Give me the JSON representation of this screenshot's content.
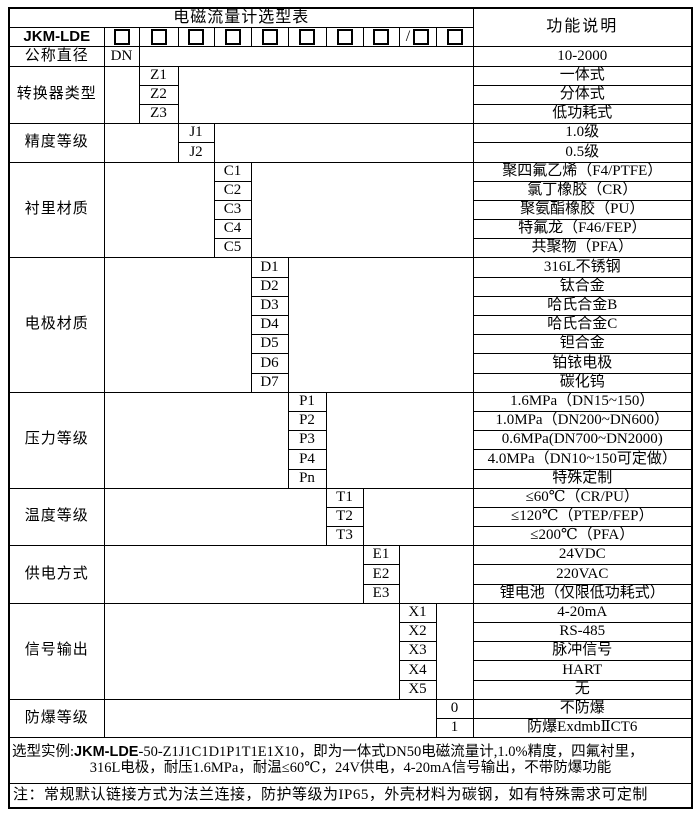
{
  "title": "电磁流量计选型表",
  "right_header": "功能说明",
  "model_row": {
    "brand": "JKM-LDE",
    "slash": "/",
    "checkbox_count": 10
  },
  "sections": [
    {
      "label": "公称直径",
      "col": 1,
      "rows": [
        {
          "code": "DN",
          "desc": "10-2000"
        }
      ]
    },
    {
      "label": "转换器类型",
      "col": 2,
      "rows": [
        {
          "code": "Z1",
          "desc": "一体式"
        },
        {
          "code": "Z2",
          "desc": "分体式"
        },
        {
          "code": "Z3",
          "desc": "低功耗式"
        }
      ]
    },
    {
      "label": "精度等级",
      "col": 3,
      "rows": [
        {
          "code": "J1",
          "desc": "1.0级"
        },
        {
          "code": "J2",
          "desc": "0.5级"
        }
      ]
    },
    {
      "label": "衬里材质",
      "col": 4,
      "rows": [
        {
          "code": "C1",
          "desc": "聚四氟乙烯（F4/PTFE）"
        },
        {
          "code": "C2",
          "desc": "氯丁橡胶（CR）"
        },
        {
          "code": "C3",
          "desc": "聚氨酯橡胶（PU）"
        },
        {
          "code": "C4",
          "desc": "特氟龙（F46/FEP）"
        },
        {
          "code": "C5",
          "desc": "共聚物（PFA）"
        }
      ]
    },
    {
      "label": "电极材质",
      "col": 5,
      "rows": [
        {
          "code": "D1",
          "desc": "316L不锈钢"
        },
        {
          "code": "D2",
          "desc": "钛合金"
        },
        {
          "code": "D3",
          "desc": "哈氏合金B"
        },
        {
          "code": "D4",
          "desc": "哈氏合金C"
        },
        {
          "code": "D5",
          "desc": "钽合金"
        },
        {
          "code": "D6",
          "desc": "铂铱电极"
        },
        {
          "code": "D7",
          "desc": "碳化钨"
        }
      ]
    },
    {
      "label": "压力等级",
      "col": 6,
      "rows": [
        {
          "code": "P1",
          "desc": "1.6MPa（DN15~150）"
        },
        {
          "code": "P2",
          "desc": "1.0MPa（DN200~DN600）"
        },
        {
          "code": "P3",
          "desc": "0.6MPa(DN700~DN2000)"
        },
        {
          "code": "P4",
          "desc": "4.0MPa（DN10~150可定做）"
        },
        {
          "code": "Pn",
          "desc": "特殊定制"
        }
      ]
    },
    {
      "label": "温度等级",
      "col": 7,
      "rows": [
        {
          "code": "T1",
          "desc": "≤60℃（CR/PU）"
        },
        {
          "code": "T2",
          "desc": "≤120℃（PTEP/FEP）"
        },
        {
          "code": "T3",
          "desc": "≤200℃（PFA）"
        }
      ]
    },
    {
      "label": "供电方式",
      "col": 8,
      "rows": [
        {
          "code": "E1",
          "desc": "24VDC"
        },
        {
          "code": "E2",
          "desc": "220VAC"
        },
        {
          "code": "E3",
          "desc": "锂电池（仅限低功耗式）"
        }
      ]
    },
    {
      "label": "信号输出",
      "col": 9,
      "rows": [
        {
          "code": "X1",
          "desc": "4-20mA"
        },
        {
          "code": "X2",
          "desc": "RS-485"
        },
        {
          "code": "X3",
          "desc": "脉冲信号"
        },
        {
          "code": "X4",
          "desc": "HART"
        },
        {
          "code": "X5",
          "desc": "无"
        }
      ]
    },
    {
      "label": "防爆等级",
      "col": 10,
      "rows": [
        {
          "code": "0",
          "desc": "不防爆"
        },
        {
          "code": "1",
          "desc": "防爆ExdmbⅡCT6"
        }
      ]
    }
  ],
  "example": {
    "label": "选型实例:",
    "brand": "JKM-LDE",
    "code": "-50-Z1J1C1D1P1T1E1X10",
    "rest": "，即为一体式DN50电磁流量计,1.0%精度，四氟衬里，",
    "line2": "316L电极，耐压1.6MPa，耐温≤60℃，24V供电，4-20mA信号输出，不带防爆功能"
  },
  "note": "注：常规默认链接方式为法兰连接，防护等级为IP65，外壳材料为碳钢，如有特殊需求可定制",
  "colors": {
    "border": "#000000",
    "background": "#ffffff",
    "text": "#000000"
  }
}
